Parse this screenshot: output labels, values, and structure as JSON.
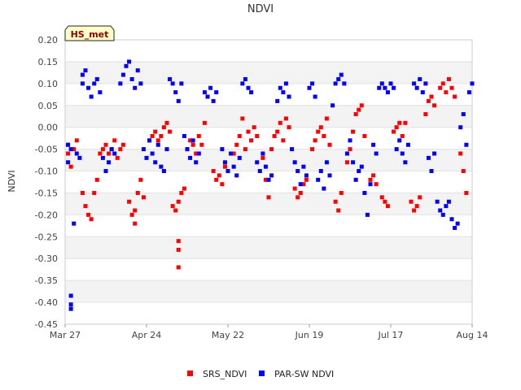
{
  "chart_data": {
    "type": "scatter",
    "title": "NDVI",
    "badge": "HS_met",
    "xlabel": "",
    "ylabel": "NDVI",
    "x_ticks": [
      "Mar 27",
      "Apr 24",
      "May 22",
      "Jun 19",
      "Jul 17",
      "Aug 14"
    ],
    "y_ticks": [
      "0.20",
      "0.15",
      "0.10",
      "0.05",
      "0.00",
      "-0.05",
      "-0.10",
      "-0.15",
      "-0.20",
      "-0.25",
      "-0.30",
      "-0.35",
      "-0.40",
      "-0.45"
    ],
    "xlim": [
      "Mar 27",
      "Aug 14"
    ],
    "ylim": [
      -0.45,
      0.2
    ],
    "grid": "horizontal bands",
    "legend_position": "bottom",
    "series": [
      {
        "name": "SRS_NDVI",
        "color": "#ff0000",
        "points": [
          [
            "Mar 28",
            -0.04
          ],
          [
            "Mar 28",
            -0.06
          ],
          [
            "Mar 29",
            -0.09
          ],
          [
            "Mar 30",
            -0.05
          ],
          [
            "Mar 31",
            -0.03
          ],
          [
            "Apr 2",
            -0.15
          ],
          [
            "Apr 3",
            -0.18
          ],
          [
            "Apr 4",
            -0.2
          ],
          [
            "Apr 5",
            -0.21
          ],
          [
            "Apr 6",
            -0.15
          ],
          [
            "Apr 7",
            -0.12
          ],
          [
            "Apr 8",
            -0.06
          ],
          [
            "Apr 9",
            -0.05
          ],
          [
            "Apr 10",
            -0.04
          ],
          [
            "Apr 11",
            -0.06
          ],
          [
            "Apr 12",
            -0.05
          ],
          [
            "Apr 13",
            -0.03
          ],
          [
            "Apr 14",
            -0.07
          ],
          [
            "Apr 15",
            -0.05
          ],
          [
            "Apr 16",
            -0.04
          ],
          [
            "Apr 18",
            -0.17
          ],
          [
            "Apr 19",
            -0.2
          ],
          [
            "Apr 20",
            -0.22
          ],
          [
            "Apr 20",
            -0.19
          ],
          [
            "Apr 21",
            -0.15
          ],
          [
            "Apr 22",
            -0.12
          ],
          [
            "Apr 23",
            -0.16
          ],
          [
            "Apr 25",
            -0.03
          ],
          [
            "Apr 26",
            -0.02
          ],
          [
            "Apr 27",
            -0.01
          ],
          [
            "Apr 28",
            -0.03
          ],
          [
            "Apr 29",
            -0.02
          ],
          [
            "Apr 30",
            0.0
          ],
          [
            "May 1",
            0.01
          ],
          [
            "May 2",
            -0.01
          ],
          [
            "May 3",
            -0.18
          ],
          [
            "May 4",
            -0.19
          ],
          [
            "May 5",
            -0.17
          ],
          [
            "May 5",
            -0.26
          ],
          [
            "May 5",
            -0.28
          ],
          [
            "May 5",
            -0.32
          ],
          [
            "May 6",
            -0.15
          ],
          [
            "May 7",
            -0.14
          ],
          [
            "May 8",
            -0.05
          ],
          [
            "May 9",
            -0.03
          ],
          [
            "May 10",
            -0.04
          ],
          [
            "May 11",
            -0.06
          ],
          [
            "May 12",
            -0.02
          ],
          [
            "May 13",
            -0.04
          ],
          [
            "May 14",
            0.01
          ],
          [
            "May 17",
            -0.1
          ],
          [
            "May 18",
            -0.12
          ],
          [
            "May 19",
            -0.11
          ],
          [
            "May 20",
            -0.13
          ],
          [
            "May 21",
            -0.09
          ],
          [
            "May 22",
            -0.1
          ],
          [
            "May 24",
            -0.06
          ],
          [
            "May 25",
            -0.04
          ],
          [
            "May 26",
            -0.02
          ],
          [
            "May 27",
            0.02
          ],
          [
            "May 28",
            -0.05
          ],
          [
            "May 29",
            -0.01
          ],
          [
            "May 30",
            -0.03
          ],
          [
            "May 31",
            0.0
          ],
          [
            "Jun 1",
            -0.02
          ],
          [
            "Jun 3",
            -0.07
          ],
          [
            "Jun 4",
            -0.12
          ],
          [
            "Jun 5",
            -0.16
          ],
          [
            "Jun 6",
            -0.05
          ],
          [
            "Jun 7",
            -0.02
          ],
          [
            "Jun 8",
            -0.01
          ],
          [
            "Jun 9",
            0.01
          ],
          [
            "Jun 10",
            -0.03
          ],
          [
            "Jun 11",
            0.02
          ],
          [
            "Jun 12",
            0.0
          ],
          [
            "Jun 14",
            -0.14
          ],
          [
            "Jun 15",
            -0.16
          ],
          [
            "Jun 16",
            -0.15
          ],
          [
            "Jun 17",
            -0.13
          ],
          [
            "Jun 18",
            -0.12
          ],
          [
            "Jun 20",
            -0.05
          ],
          [
            "Jun 21",
            -0.03
          ],
          [
            "Jun 22",
            -0.01
          ],
          [
            "Jun 23",
            0.0
          ],
          [
            "Jun 24",
            -0.02
          ],
          [
            "Jun 25",
            0.02
          ],
          [
            "Jun 26",
            -0.04
          ],
          [
            "Jun 28",
            -0.17
          ],
          [
            "Jun 29",
            -0.19
          ],
          [
            "Jun 30",
            -0.15
          ],
          [
            "Jul 2",
            -0.08
          ],
          [
            "Jul 3",
            -0.05
          ],
          [
            "Jul 4",
            -0.01
          ],
          [
            "Jul 5",
            0.03
          ],
          [
            "Jul 6",
            0.04
          ],
          [
            "Jul 7",
            0.05
          ],
          [
            "Jul 8",
            -0.02
          ],
          [
            "Jul 10",
            -0.12
          ],
          [
            "Jul 11",
            -0.11
          ],
          [
            "Jul 12",
            -0.13
          ],
          [
            "Jul 14",
            -0.16
          ],
          [
            "Jul 15",
            -0.17
          ],
          [
            "Jul 16",
            -0.18
          ],
          [
            "Jul 18",
            -0.01
          ],
          [
            "Jul 19",
            0.0
          ],
          [
            "Jul 20",
            0.01
          ],
          [
            "Jul 21",
            -0.02
          ],
          [
            "Jul 22",
            0.01
          ],
          [
            "Jul 24",
            -0.17
          ],
          [
            "Jul 25",
            -0.19
          ],
          [
            "Jul 26",
            -0.18
          ],
          [
            "Jul 27",
            -0.16
          ],
          [
            "Jul 29",
            0.03
          ],
          [
            "Jul 30",
            0.06
          ],
          [
            "Jul 31",
            0.07
          ],
          [
            "Aug 1",
            0.05
          ],
          [
            "Aug 3",
            0.09
          ],
          [
            "Aug 4",
            0.1
          ],
          [
            "Aug 5",
            0.08
          ],
          [
            "Aug 6",
            0.11
          ],
          [
            "Aug 7",
            0.09
          ],
          [
            "Aug 8",
            0.07
          ],
          [
            "Aug 10",
            -0.06
          ],
          [
            "Aug 11",
            -0.1
          ],
          [
            "Aug 12",
            -0.15
          ]
        ]
      },
      {
        "name": "PAR-SW NDVI",
        "color": "#0000ff",
        "points": [
          [
            "Mar 28",
            -0.08
          ],
          [
            "Mar 28",
            -0.04
          ],
          [
            "Mar 29",
            -0.05
          ],
          [
            "Mar 29",
            -0.385
          ],
          [
            "Mar 29",
            -0.405
          ],
          [
            "Mar 29",
            -0.415
          ],
          [
            "Mar 30",
            -0.22
          ],
          [
            "Mar 31",
            -0.06
          ],
          [
            "Apr 1",
            -0.07
          ],
          [
            "Apr 2",
            0.1
          ],
          [
            "Apr 2",
            0.12
          ],
          [
            "Apr 3",
            0.13
          ],
          [
            "Apr 4",
            0.09
          ],
          [
            "Apr 5",
            0.07
          ],
          [
            "Apr 6",
            0.1
          ],
          [
            "Apr 7",
            0.11
          ],
          [
            "Apr 8",
            0.08
          ],
          [
            "Apr 9",
            -0.07
          ],
          [
            "Apr 10",
            -0.1
          ],
          [
            "Apr 11",
            -0.08
          ],
          [
            "Apr 12",
            -0.05
          ],
          [
            "Apr 13",
            -0.06
          ],
          [
            "Apr 15",
            0.1
          ],
          [
            "Apr 16",
            0.12
          ],
          [
            "Apr 17",
            0.14
          ],
          [
            "Apr 18",
            0.15
          ],
          [
            "Apr 19",
            0.11
          ],
          [
            "Apr 20",
            0.09
          ],
          [
            "Apr 21",
            0.13
          ],
          [
            "Apr 22",
            0.1
          ],
          [
            "Apr 23",
            -0.05
          ],
          [
            "Apr 24",
            -0.07
          ],
          [
            "Apr 25",
            -0.03
          ],
          [
            "Apr 26",
            -0.06
          ],
          [
            "Apr 27",
            -0.08
          ],
          [
            "Apr 28",
            -0.04
          ],
          [
            "Apr 29",
            -0.09
          ],
          [
            "Apr 30",
            -0.1
          ],
          [
            "May 1",
            -0.05
          ],
          [
            "May 2",
            0.11
          ],
          [
            "May 3",
            0.1
          ],
          [
            "May 4",
            0.08
          ],
          [
            "May 5",
            0.06
          ],
          [
            "May 6",
            0.1
          ],
          [
            "May 7",
            -0.02
          ],
          [
            "May 8",
            -0.05
          ],
          [
            "May 9",
            -0.07
          ],
          [
            "May 10",
            -0.03
          ],
          [
            "May 11",
            -0.08
          ],
          [
            "May 12",
            -0.06
          ],
          [
            "May 14",
            0.08
          ],
          [
            "May 15",
            0.07
          ],
          [
            "May 16",
            0.09
          ],
          [
            "May 17",
            0.06
          ],
          [
            "May 18",
            0.08
          ],
          [
            "May 20",
            -0.05
          ],
          [
            "May 21",
            -0.08
          ],
          [
            "May 22",
            -0.1
          ],
          [
            "May 23",
            -0.06
          ],
          [
            "May 24",
            -0.09
          ],
          [
            "May 25",
            -0.11
          ],
          [
            "May 26",
            -0.07
          ],
          [
            "May 27",
            0.1
          ],
          [
            "May 28",
            0.11
          ],
          [
            "May 29",
            0.09
          ],
          [
            "May 30",
            0.08
          ],
          [
            "Jun 1",
            -0.08
          ],
          [
            "Jun 2",
            -0.1
          ],
          [
            "Jun 3",
            -0.06
          ],
          [
            "Jun 4",
            -0.09
          ],
          [
            "Jun 5",
            -0.12
          ],
          [
            "Jun 6",
            -0.11
          ],
          [
            "Jun 8",
            0.06
          ],
          [
            "Jun 9",
            0.09
          ],
          [
            "Jun 10",
            0.08
          ],
          [
            "Jun 11",
            0.1
          ],
          [
            "Jun 12",
            0.07
          ],
          [
            "Jun 13",
            -0.05
          ],
          [
            "Jun 14",
            -0.08
          ],
          [
            "Jun 15",
            -0.1
          ],
          [
            "Jun 16",
            -0.13
          ],
          [
            "Jun 17",
            -0.09
          ],
          [
            "Jun 18",
            -0.11
          ],
          [
            "Jun 19",
            0.09
          ],
          [
            "Jun 20",
            0.1
          ],
          [
            "Jun 21",
            0.07
          ],
          [
            "Jun 22",
            -0.12
          ],
          [
            "Jun 23",
            -0.1
          ],
          [
            "Jun 24",
            -0.14
          ],
          [
            "Jun 25",
            -0.08
          ],
          [
            "Jun 26",
            -0.11
          ],
          [
            "Jun 27",
            0.05
          ],
          [
            "Jun 28",
            0.1
          ],
          [
            "Jun 29",
            0.11
          ],
          [
            "Jun 30",
            0.12
          ],
          [
            "Jul 1",
            0.1
          ],
          [
            "Jul 2",
            -0.06
          ],
          [
            "Jul 3",
            -0.03
          ],
          [
            "Jul 4",
            -0.08
          ],
          [
            "Jul 5",
            -0.12
          ],
          [
            "Jul 6",
            -0.1
          ],
          [
            "Jul 7",
            -0.09
          ],
          [
            "Jul 8",
            -0.15
          ],
          [
            "Jul 9",
            -0.2
          ],
          [
            "Jul 10",
            -0.13
          ],
          [
            "Jul 11",
            -0.04
          ],
          [
            "Jul 12",
            -0.06
          ],
          [
            "Jul 13",
            0.09
          ],
          [
            "Jul 14",
            0.1
          ],
          [
            "Jul 15",
            0.09
          ],
          [
            "Jul 16",
            0.08
          ],
          [
            "Jul 17",
            0.1
          ],
          [
            "Jul 18",
            0.09
          ],
          [
            "Jul 19",
            -0.05
          ],
          [
            "Jul 20",
            -0.03
          ],
          [
            "Jul 21",
            -0.06
          ],
          [
            "Jul 22",
            -0.08
          ],
          [
            "Jul 23",
            -0.04
          ],
          [
            "Jul 25",
            0.1
          ],
          [
            "Jul 26",
            0.09
          ],
          [
            "Jul 27",
            0.11
          ],
          [
            "Jul 28",
            0.08
          ],
          [
            "Jul 29",
            0.1
          ],
          [
            "Jul 30",
            -0.07
          ],
          [
            "Jul 31",
            -0.1
          ],
          [
            "Aug 1",
            -0.06
          ],
          [
            "Aug 2",
            -0.17
          ],
          [
            "Aug 3",
            -0.19
          ],
          [
            "Aug 4",
            -0.2
          ],
          [
            "Aug 5",
            -0.18
          ],
          [
            "Aug 6",
            -0.17
          ],
          [
            "Aug 7",
            -0.21
          ],
          [
            "Aug 8",
            -0.23
          ],
          [
            "Aug 9",
            -0.22
          ],
          [
            "Aug 10",
            0.0
          ],
          [
            "Aug 11",
            0.03
          ],
          [
            "Aug 12",
            -0.04
          ],
          [
            "Aug 13",
            0.08
          ],
          [
            "Aug 14",
            0.1
          ]
        ]
      }
    ]
  }
}
